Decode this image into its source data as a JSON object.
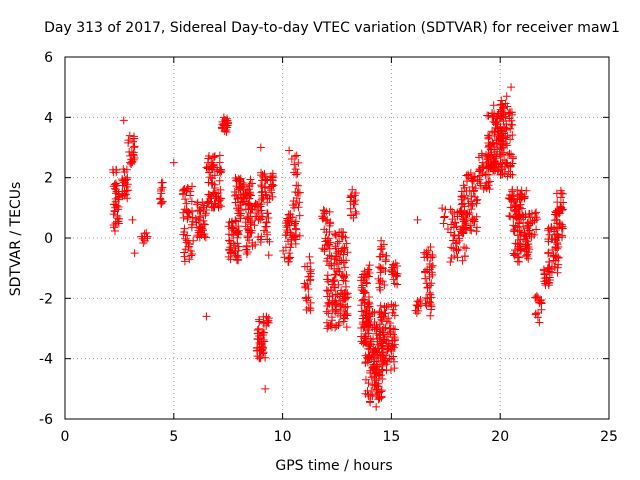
{
  "chart_data": {
    "type": "scatter",
    "title": "Day 313 of 2017, Sidereal Day-to-day VTEC variation (SDTVAR) for receiver maw1",
    "xlabel": "GPS time / hours",
    "ylabel": "SDTVAR / TECUs",
    "xlim": [
      0,
      25
    ],
    "ylim": [
      -6,
      6
    ],
    "xticks": [
      0,
      5,
      10,
      15,
      20,
      25
    ],
    "yticks": [
      -6,
      -4,
      -2,
      0,
      2,
      4,
      6
    ],
    "grid": true,
    "marker": "+",
    "marker_color": "#ff0000",
    "seed": 313,
    "clusters": [
      {
        "x0": 2.2,
        "x1": 2.5,
        "ymin": 0.2,
        "ymax": 2.3,
        "n": 40
      },
      {
        "x0": 2.6,
        "x1": 2.9,
        "ymin": 1.3,
        "ymax": 2.3,
        "n": 24
      },
      {
        "x0": 2.9,
        "x1": 3.2,
        "ymin": 2.4,
        "ymax": 3.5,
        "n": 22
      },
      {
        "x0": 3.5,
        "x1": 3.8,
        "ymin": -0.2,
        "ymax": 0.2,
        "n": 8
      },
      {
        "x0": 4.3,
        "x1": 4.5,
        "ymin": 1.0,
        "ymax": 2.0,
        "n": 12
      },
      {
        "x0": 5.4,
        "x1": 5.9,
        "ymin": -0.8,
        "ymax": 1.8,
        "n": 50
      },
      {
        "x0": 6.0,
        "x1": 6.5,
        "ymin": 0.0,
        "ymax": 1.2,
        "n": 40
      },
      {
        "x0": 6.5,
        "x1": 7.2,
        "ymin": 1.0,
        "ymax": 2.8,
        "n": 70
      },
      {
        "x0": 7.2,
        "x1": 7.5,
        "ymin": 3.5,
        "ymax": 4.0,
        "n": 20
      },
      {
        "x0": 7.5,
        "x1": 8.0,
        "ymin": -0.8,
        "ymax": 0.6,
        "n": 50
      },
      {
        "x0": 7.8,
        "x1": 8.6,
        "ymin": 0.6,
        "ymax": 2.0,
        "n": 70
      },
      {
        "x0": 8.3,
        "x1": 9.4,
        "ymin": -0.6,
        "ymax": 1.2,
        "n": 70
      },
      {
        "x0": 8.8,
        "x1": 9.2,
        "ymin": -4.0,
        "ymax": -3.0,
        "n": 40
      },
      {
        "x0": 8.9,
        "x1": 9.4,
        "ymin": -3.0,
        "ymax": -2.6,
        "n": 12
      },
      {
        "x0": 9.0,
        "x1": 9.6,
        "ymin": 1.2,
        "ymax": 2.2,
        "n": 40
      },
      {
        "x0": 10.0,
        "x1": 10.4,
        "ymin": -0.8,
        "ymax": 0.8,
        "n": 30
      },
      {
        "x0": 10.4,
        "x1": 10.8,
        "ymin": -0.4,
        "ymax": 2.8,
        "n": 40
      },
      {
        "x0": 11.0,
        "x1": 11.3,
        "ymin": -2.4,
        "ymax": -0.6,
        "n": 25
      },
      {
        "x0": 11.8,
        "x1": 12.2,
        "ymin": -0.6,
        "ymax": 1.0,
        "n": 30
      },
      {
        "x0": 12.0,
        "x1": 13.0,
        "ymin": -3.0,
        "ymax": -0.6,
        "n": 110
      },
      {
        "x0": 12.4,
        "x1": 13.0,
        "ymin": -0.6,
        "ymax": 0.2,
        "n": 25
      },
      {
        "x0": 13.1,
        "x1": 13.4,
        "ymin": 0.6,
        "ymax": 1.5,
        "n": 16
      },
      {
        "x0": 13.6,
        "x1": 14.0,
        "ymin": -3.5,
        "ymax": -1.0,
        "n": 60
      },
      {
        "x0": 13.8,
        "x1": 14.6,
        "ymin": -5.5,
        "ymax": -2.4,
        "n": 150
      },
      {
        "x0": 14.4,
        "x1": 14.8,
        "ymin": -1.8,
        "ymax": 0.0,
        "n": 25
      },
      {
        "x0": 14.5,
        "x1": 15.2,
        "ymin": -4.4,
        "ymax": -2.2,
        "n": 80
      },
      {
        "x0": 15.0,
        "x1": 15.3,
        "ymin": -1.6,
        "ymax": -0.8,
        "n": 20
      },
      {
        "x0": 16.1,
        "x1": 16.4,
        "ymin": -2.6,
        "ymax": -2.0,
        "n": 10
      },
      {
        "x0": 16.5,
        "x1": 16.9,
        "ymin": -2.6,
        "ymax": -0.4,
        "n": 40
      },
      {
        "x0": 17.3,
        "x1": 17.5,
        "ymin": 0.4,
        "ymax": 1.0,
        "n": 5
      },
      {
        "x0": 17.7,
        "x1": 18.5,
        "ymin": -0.8,
        "ymax": 1.0,
        "n": 50
      },
      {
        "x0": 18.2,
        "x1": 19.0,
        "ymin": 0.2,
        "ymax": 2.2,
        "n": 70
      },
      {
        "x0": 19.0,
        "x1": 19.6,
        "ymin": 1.6,
        "ymax": 2.8,
        "n": 40
      },
      {
        "x0": 19.4,
        "x1": 20.2,
        "ymin": 2.2,
        "ymax": 4.2,
        "n": 110
      },
      {
        "x0": 20.0,
        "x1": 20.6,
        "ymin": 2.0,
        "ymax": 4.6,
        "n": 70
      },
      {
        "x0": 20.4,
        "x1": 21.2,
        "ymin": 0.6,
        "ymax": 1.6,
        "n": 50
      },
      {
        "x0": 20.6,
        "x1": 21.4,
        "ymin": -0.8,
        "ymax": 0.8,
        "n": 70
      },
      {
        "x0": 21.3,
        "x1": 21.7,
        "ymin": 0.0,
        "ymax": 0.9,
        "n": 20
      },
      {
        "x0": 21.6,
        "x1": 21.9,
        "ymin": -2.8,
        "ymax": -1.8,
        "n": 15
      },
      {
        "x0": 22.0,
        "x1": 22.3,
        "ymin": -1.6,
        "ymax": -1.0,
        "n": 20
      },
      {
        "x0": 22.2,
        "x1": 22.7,
        "ymin": -1.2,
        "ymax": 0.4,
        "n": 45
      },
      {
        "x0": 22.5,
        "x1": 22.9,
        "ymin": 0.0,
        "ymax": 1.6,
        "n": 40
      }
    ],
    "points": [
      {
        "x": 2.7,
        "y": 3.9
      },
      {
        "x": 3.1,
        "y": 0.6
      },
      {
        "x": 3.2,
        "y": -0.5
      },
      {
        "x": 5.0,
        "y": 2.5
      },
      {
        "x": 6.5,
        "y": -2.6
      },
      {
        "x": 7.3,
        "y": 4.0
      },
      {
        "x": 9.2,
        "y": -5.0
      },
      {
        "x": 9.0,
        "y": 3.0
      },
      {
        "x": 10.3,
        "y": 2.9
      },
      {
        "x": 12.2,
        "y": -2.9
      },
      {
        "x": 13.2,
        "y": 1.6
      },
      {
        "x": 14.3,
        "y": -5.6
      },
      {
        "x": 14.0,
        "y": -0.9
      },
      {
        "x": 16.2,
        "y": 0.6
      },
      {
        "x": 16.8,
        "y": -0.3
      },
      {
        "x": 17.6,
        "y": 0.3
      },
      {
        "x": 19.7,
        "y": 4.4
      },
      {
        "x": 20.5,
        "y": 5.0
      },
      {
        "x": 20.3,
        "y": 4.7
      },
      {
        "x": 21.8,
        "y": -2.8
      },
      {
        "x": 22.6,
        "y": -0.6
      }
    ]
  }
}
